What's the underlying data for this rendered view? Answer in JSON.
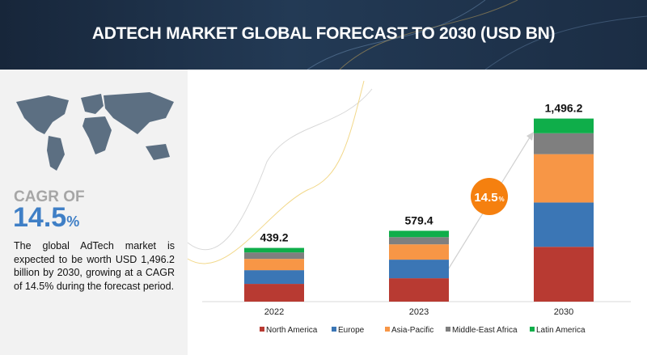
{
  "title": "ADTECH MARKET GLOBAL FORECAST TO 2030 (USD BN)",
  "sidebar": {
    "cagr_label": "CAGR OF",
    "cagr_value": "14.5",
    "cagr_unit": "%",
    "description": "The global AdTech market is expected to be worth USD 1,496.2 billion by 2030, growing at a CAGR of 14.5% during the forecast period."
  },
  "badge": {
    "value": "14.5",
    "unit": "%",
    "color": "#f5800f"
  },
  "chart_data": {
    "type": "bar",
    "stacked": true,
    "title": "ADTECH MARKET GLOBAL FORECAST TO 2030 (USD BN)",
    "categories": [
      "2022",
      "2023",
      "2030"
    ],
    "totals": [
      "439.2",
      "579.4",
      "1,496.2"
    ],
    "total_values": [
      439.2,
      579.4,
      1496.2
    ],
    "series": [
      {
        "name": "North America",
        "color": "#b83a32",
        "values": [
          145,
          191,
          448
        ]
      },
      {
        "name": "Europe",
        "color": "#3b76b5",
        "values": [
          112,
          152,
          362
        ]
      },
      {
        "name": "Asia-Pacific",
        "color": "#f79646",
        "values": [
          92,
          125,
          395
        ]
      },
      {
        "name": "Middle-East Africa",
        "color": "#7f7f7f",
        "values": [
          53,
          59,
          171
        ]
      },
      {
        "name": "Latin America",
        "color": "#0fae4a",
        "values": [
          37,
          52,
          120
        ]
      }
    ],
    "ylim": [
      0,
      1500
    ],
    "legend": "bottom",
    "grid": false
  }
}
